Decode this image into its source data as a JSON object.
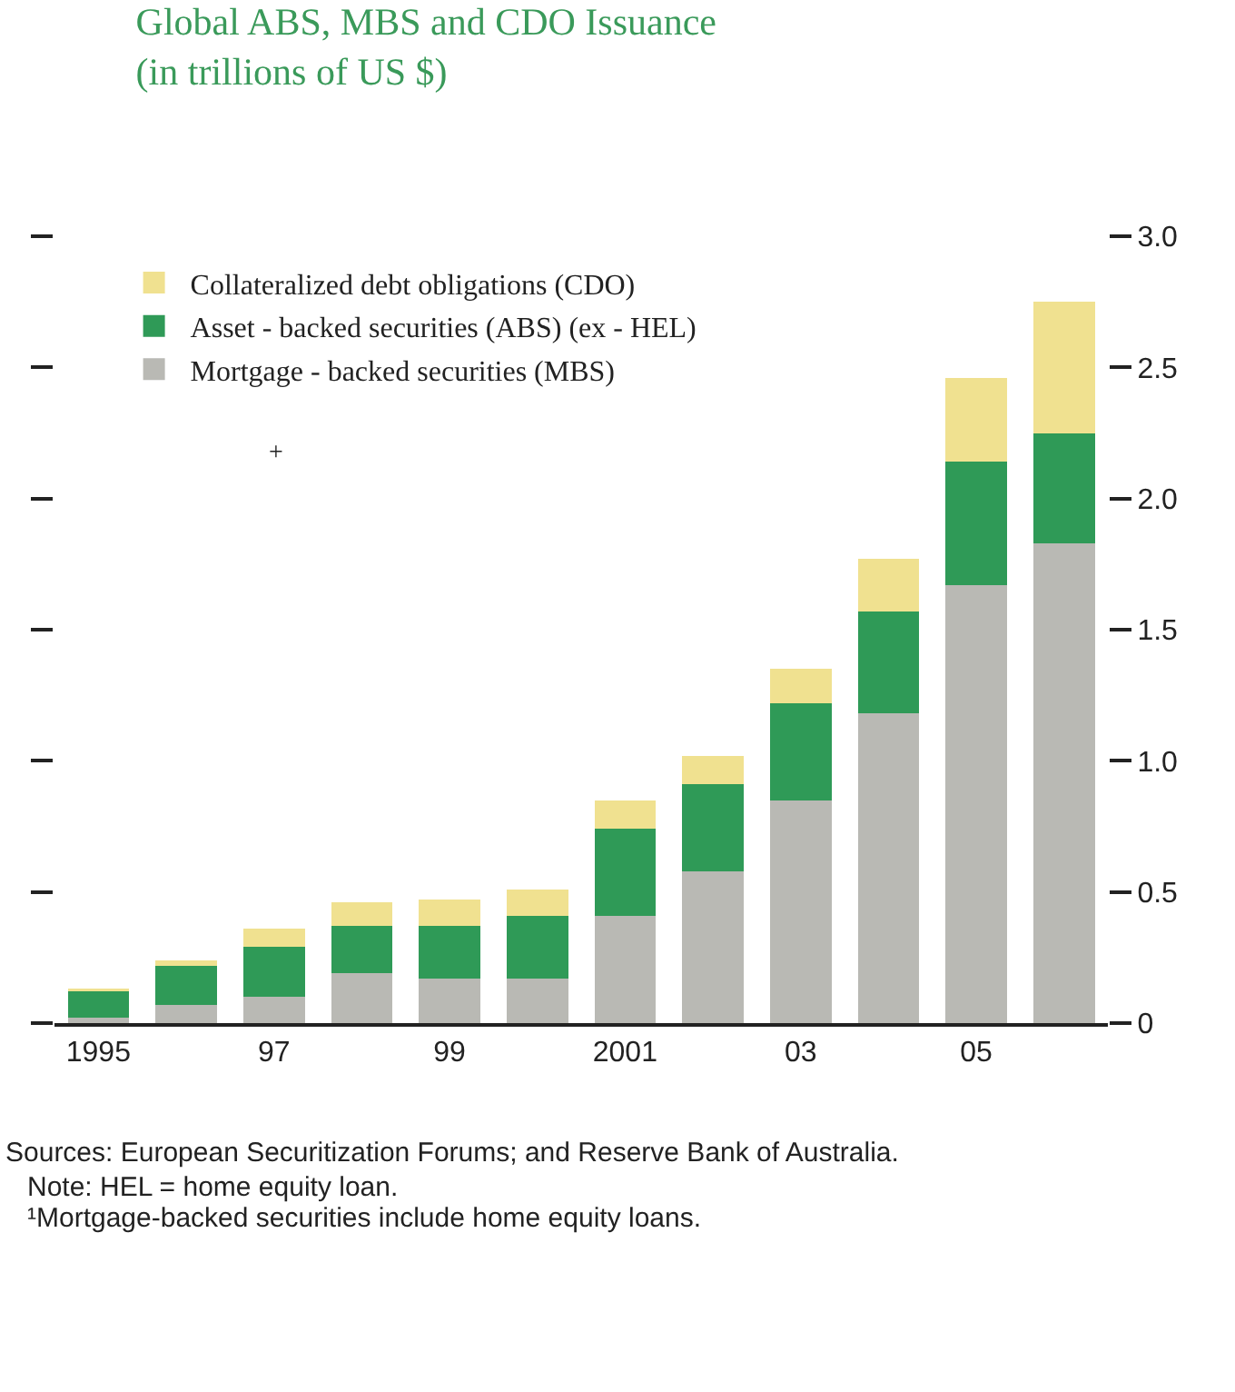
{
  "chart_data": {
    "type": "bar",
    "stacked": true,
    "title": "Global ABS, MBS and CDO Issuance\n(in trillions of US $)",
    "categories": [
      "1995",
      null,
      "97",
      null,
      "99",
      null,
      "2001",
      null,
      "03",
      null,
      "05",
      null
    ],
    "series": [
      {
        "name": "Mortgage - backed securities (MBS)",
        "color": "#b9b9b4",
        "values": [
          0.02,
          0.07,
          0.1,
          0.19,
          0.17,
          0.17,
          0.41,
          0.58,
          0.85,
          1.18,
          1.67,
          1.83
        ]
      },
      {
        "name": "Asset - backed securities (ABS) (ex - HEL)",
        "color": "#2f9a57",
        "values": [
          0.1,
          0.15,
          0.19,
          0.18,
          0.2,
          0.24,
          0.33,
          0.33,
          0.37,
          0.39,
          0.47,
          0.42
        ]
      },
      {
        "name": "Collateralized debt obligations (CDO)",
        "color": "#f0e190",
        "values": [
          0.01,
          0.02,
          0.07,
          0.09,
          0.1,
          0.1,
          0.11,
          0.11,
          0.13,
          0.2,
          0.32,
          0.5
        ]
      }
    ],
    "ylim": [
      0,
      3.0
    ],
    "yticks": [
      0,
      {
        "value": 0.5,
        "label": "0.5"
      },
      {
        "value": 1,
        "label": "1.0"
      },
      {
        "value": 1.5,
        "label": "1.5"
      },
      {
        "value": 2,
        "label": "2.0"
      },
      {
        "value": 2.5,
        "label": "2.5"
      },
      {
        "value": 3,
        "label": "3.0"
      }
    ],
    "grid": false,
    "legend": "top left",
    "annotations": [
      "+",
      "Sources: European Securitization Forums; and Reserve Bank of Australia.",
      "Note: HEL = home equity loan.",
      "¹Mortgage-backed securities include home equity loans."
    ]
  }
}
